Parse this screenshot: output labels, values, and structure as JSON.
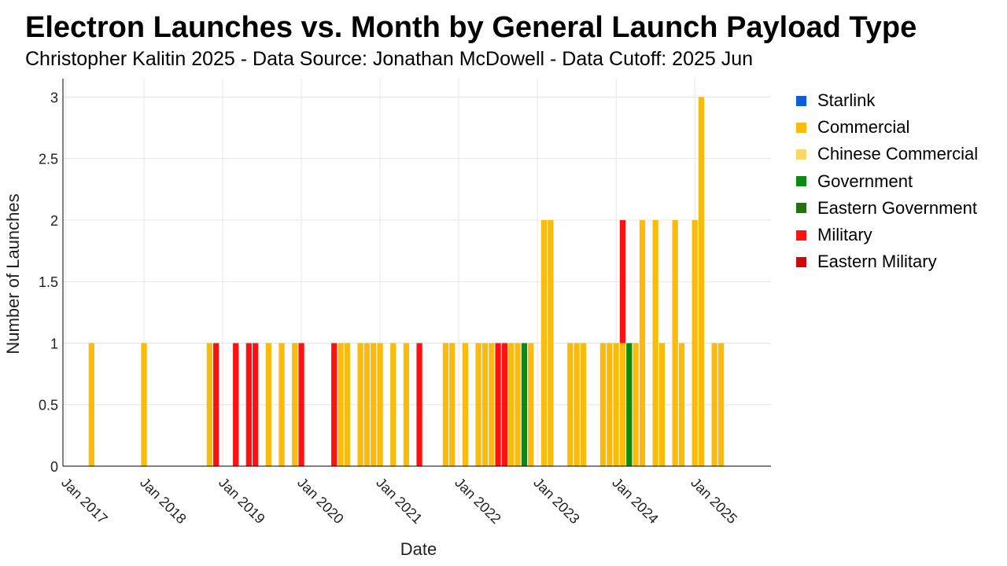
{
  "title": "Electron Launches vs. Month by General Launch Payload Type",
  "subtitle": "Christopher Kalitin 2025 - Data Source: Jonathan McDowell - Data Cutoff: 2025 Jun",
  "legend": [
    {
      "name": "Starlink",
      "color": "#0b5ed7"
    },
    {
      "name": "Commercial",
      "color": "#fbbb0c"
    },
    {
      "name": "Chinese Commercial",
      "color": "#f8d766"
    },
    {
      "name": "Government",
      "color": "#0d8a12"
    },
    {
      "name": "Eastern Government",
      "color": "#267012"
    },
    {
      "name": "Military",
      "color": "#ff1111"
    },
    {
      "name": "Eastern Military",
      "color": "#cc0a0a"
    }
  ],
  "chart_data": {
    "type": "bar",
    "stacked": true,
    "xlabel": "Date",
    "ylabel": "Number of Launches",
    "ylim": [
      0,
      3.15
    ],
    "yticks": [
      "0",
      "0.5",
      "1",
      "1.5",
      "2",
      "2.5",
      "3"
    ],
    "xticks": [
      "Jan 2017",
      "Jan 2018",
      "Jan 2019",
      "Jan 2020",
      "Jan 2021",
      "Jan 2022",
      "Jan 2023",
      "Jan 2024",
      "Jan 2025"
    ],
    "grid": true,
    "legend_position": "right",
    "bars": [
      {
        "x": "2017-05",
        "Commercial": 1
      },
      {
        "x": "2018-01",
        "Commercial": 1
      },
      {
        "x": "2018-11",
        "Commercial": 1
      },
      {
        "x": "2018-12",
        "Military": 1
      },
      {
        "x": "2019-03",
        "Military": 1
      },
      {
        "x": "2019-05",
        "Military": 1
      },
      {
        "x": "2019-06",
        "Military": 1
      },
      {
        "x": "2019-08",
        "Commercial": 1
      },
      {
        "x": "2019-10",
        "Commercial": 1
      },
      {
        "x": "2019-12",
        "Commercial": 1
      },
      {
        "x": "2020-01",
        "Military": 1
      },
      {
        "x": "2020-06",
        "Military": 1
      },
      {
        "x": "2020-07",
        "Commercial": 1
      },
      {
        "x": "2020-08",
        "Commercial": 1
      },
      {
        "x": "2020-10",
        "Commercial": 1
      },
      {
        "x": "2020-11",
        "Commercial": 1
      },
      {
        "x": "2020-12",
        "Commercial": 1
      },
      {
        "x": "2021-01",
        "Commercial": 1
      },
      {
        "x": "2021-03",
        "Commercial": 1
      },
      {
        "x": "2021-05",
        "Commercial": 1
      },
      {
        "x": "2021-07",
        "Military": 1
      },
      {
        "x": "2021-11",
        "Commercial": 1
      },
      {
        "x": "2021-12",
        "Commercial": 1
      },
      {
        "x": "2022-02",
        "Commercial": 1
      },
      {
        "x": "2022-04",
        "Commercial": 1
      },
      {
        "x": "2022-05",
        "Commercial": 1
      },
      {
        "x": "2022-06",
        "Commercial": 1
      },
      {
        "x": "2022-07",
        "Military": 1
      },
      {
        "x": "2022-08",
        "Military": 1
      },
      {
        "x": "2022-09",
        "Commercial": 1
      },
      {
        "x": "2022-10",
        "Commercial": 1
      },
      {
        "x": "2022-11",
        "Government": 1
      },
      {
        "x": "2022-12",
        "Commercial": 1
      },
      {
        "x": "2023-02",
        "Commercial": 2
      },
      {
        "x": "2023-03",
        "Commercial": 2
      },
      {
        "x": "2023-06",
        "Commercial": 1
      },
      {
        "x": "2023-07",
        "Commercial": 1
      },
      {
        "x": "2023-08",
        "Commercial": 1
      },
      {
        "x": "2023-11",
        "Commercial": 1
      },
      {
        "x": "2023-12",
        "Commercial": 1
      },
      {
        "x": "2024-01",
        "Commercial": 1
      },
      {
        "x": "2024-02",
        "Commercial": 1,
        "Military": 1
      },
      {
        "x": "2024-03",
        "Government": 1
      },
      {
        "x": "2024-04",
        "Commercial": 1
      },
      {
        "x": "2024-05",
        "Commercial": 2
      },
      {
        "x": "2024-07",
        "Commercial": 2
      },
      {
        "x": "2024-08",
        "Commercial": 1
      },
      {
        "x": "2024-10",
        "Commercial": 2
      },
      {
        "x": "2024-11",
        "Commercial": 1
      },
      {
        "x": "2025-01",
        "Commercial": 2
      },
      {
        "x": "2025-02",
        "Commercial": 3
      },
      {
        "x": "2025-04",
        "Commercial": 1
      },
      {
        "x": "2025-05",
        "Commercial": 1
      }
    ]
  }
}
